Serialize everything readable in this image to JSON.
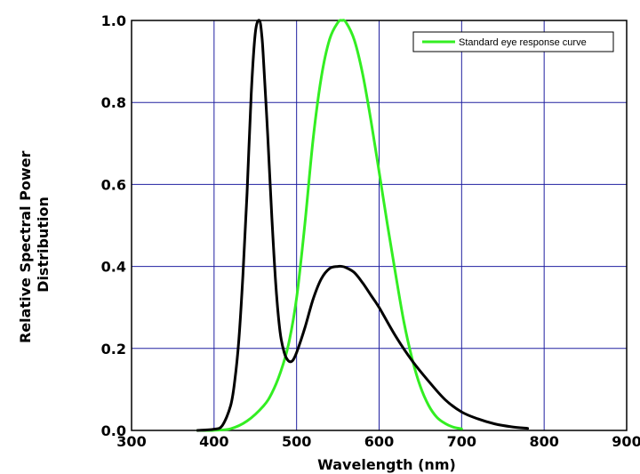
{
  "chart_data": {
    "type": "line",
    "xlabel": "Wavelength (nm)",
    "ylabel_lines": [
      "Relative Spectral Power",
      "Distribution"
    ],
    "xlim": [
      300,
      900
    ],
    "ylim": [
      0,
      1.0
    ],
    "x_ticks": [
      300,
      400,
      500,
      600,
      700,
      800,
      900
    ],
    "x_tick_labels": [
      "300",
      "400",
      "500",
      "600",
      "700",
      "800",
      "900"
    ],
    "y_ticks": [
      0,
      0.2,
      0.4,
      0.6,
      0.8,
      1.0
    ],
    "y_tick_labels": [
      "0.0",
      "0.2",
      "0.4",
      "0.6",
      "0.8",
      "1.0"
    ],
    "grid": true,
    "grid_color": "#2020a0",
    "legend_position": "top-right",
    "series": [
      {
        "name": "",
        "color": "#000000",
        "x": [
          380,
          400,
          410,
          420,
          425,
          430,
          435,
          440,
          445,
          450,
          455,
          458,
          460,
          465,
          470,
          475,
          480,
          485,
          490,
          495,
          500,
          510,
          520,
          530,
          540,
          550,
          555,
          560,
          570,
          580,
          590,
          600,
          620,
          640,
          660,
          680,
          700,
          720,
          740,
          760,
          780
        ],
        "y": [
          0.0,
          0.003,
          0.012,
          0.06,
          0.12,
          0.22,
          0.38,
          0.58,
          0.82,
          0.97,
          1.0,
          0.96,
          0.9,
          0.72,
          0.52,
          0.35,
          0.24,
          0.19,
          0.17,
          0.17,
          0.19,
          0.25,
          0.32,
          0.37,
          0.395,
          0.4,
          0.4,
          0.397,
          0.385,
          0.36,
          0.33,
          0.3,
          0.23,
          0.17,
          0.12,
          0.075,
          0.045,
          0.028,
          0.016,
          0.009,
          0.005
        ]
      },
      {
        "name": "Standard eye response curve",
        "color": "#33ee22",
        "x": [
          380,
          400,
          420,
          440,
          460,
          470,
          480,
          490,
          500,
          510,
          520,
          530,
          540,
          550,
          555,
          560,
          570,
          580,
          590,
          600,
          610,
          620,
          630,
          640,
          650,
          660,
          670,
          680,
          690,
          700
        ],
        "y": [
          0.0,
          0.0004,
          0.004,
          0.023,
          0.06,
          0.091,
          0.139,
          0.208,
          0.323,
          0.503,
          0.71,
          0.862,
          0.954,
          0.995,
          1.0,
          0.995,
          0.952,
          0.87,
          0.757,
          0.631,
          0.503,
          0.381,
          0.265,
          0.175,
          0.107,
          0.061,
          0.032,
          0.017,
          0.008,
          0.004
        ]
      }
    ]
  }
}
